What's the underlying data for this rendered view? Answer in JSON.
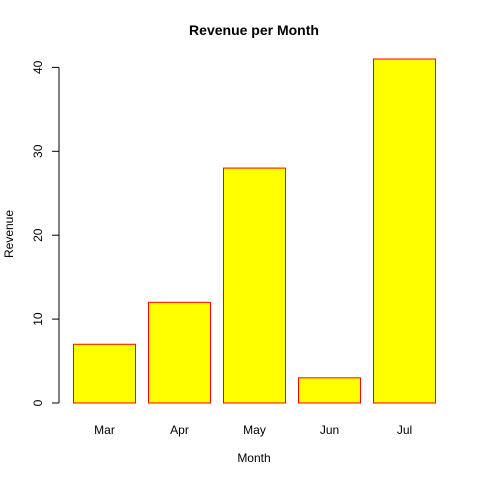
{
  "chart_data": {
    "type": "bar",
    "title": "Revenue per Month",
    "xlabel": "Month",
    "ylabel": "Revenue",
    "categories": [
      "Mar",
      "Apr",
      "May",
      "Jun",
      "Jul"
    ],
    "values": [
      7,
      12,
      28,
      3,
      41
    ],
    "ylim": [
      0,
      41
    ],
    "yticks": [
      0,
      10,
      20,
      30,
      40
    ],
    "bar_fill": "#ffff00",
    "bar_border": "#ff0000",
    "grid": false,
    "legend": "none"
  }
}
